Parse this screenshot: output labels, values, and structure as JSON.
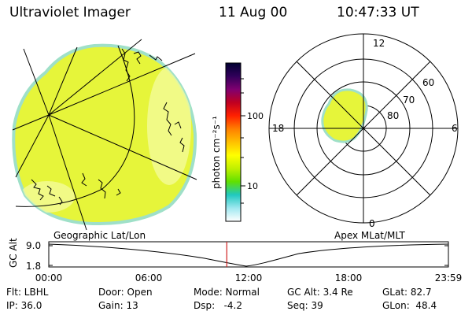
{
  "header": {
    "instrument": "Ultraviolet Imager",
    "date": "11 Aug 00",
    "time": "10:47:33 UT"
  },
  "colors": {
    "image_fill": "#e6f53a",
    "image_edge": "#9fe0c8",
    "time_marker": "#d02020"
  },
  "colorbar": {
    "unit_label": "photon cm⁻²s⁻¹",
    "ticks": [
      {
        "value": 100,
        "label": "100"
      },
      {
        "value": 10,
        "label": "10"
      }
    ],
    "stops": [
      "#000030",
      "#30005a",
      "#800070",
      "#c00020",
      "#ff2000",
      "#ff8000",
      "#ffc000",
      "#ffff00",
      "#c0f000",
      "#60e000",
      "#20c8c0",
      "#a0e8f0",
      "#ffffff"
    ]
  },
  "polar": {
    "mlt_labels": [
      {
        "label": "12",
        "mlt": 12
      },
      {
        "label": "18",
        "mlt": 18
      },
      {
        "label": "6",
        "mlt": 6
      },
      {
        "label": "0",
        "mlt": 0
      }
    ],
    "lat_labels": [
      {
        "label": "60",
        "lat": 60
      },
      {
        "label": "70",
        "lat": 70
      },
      {
        "label": "80",
        "lat": 80
      }
    ]
  },
  "orbit": {
    "left_title": "Geographic Lat/Lon",
    "right_title": "Apex MLat/MLT",
    "axis_label": "GC Alt",
    "y_ticks": [
      "9.0",
      "1.8"
    ],
    "time_ticks": [
      "00:00",
      "06:00",
      "12:00",
      "18:00",
      "23:59"
    ],
    "current_time_fraction": 0.4454
  },
  "params": {
    "row1": [
      {
        "name": "Flt: LBHL"
      },
      {
        "name": "Door: Open"
      },
      {
        "name": "Mode: Normal"
      },
      {
        "name": "GC Alt: 3.4 Re"
      },
      {
        "name": "GLat: 82.7"
      }
    ],
    "row2": [
      {
        "name": "IP: 36.0"
      },
      {
        "name": "Gain: 13"
      },
      {
        "name": "Dsp:   -4.2"
      },
      {
        "name": "Seq: 39"
      },
      {
        "name": "GLon:  48.4"
      }
    ]
  }
}
